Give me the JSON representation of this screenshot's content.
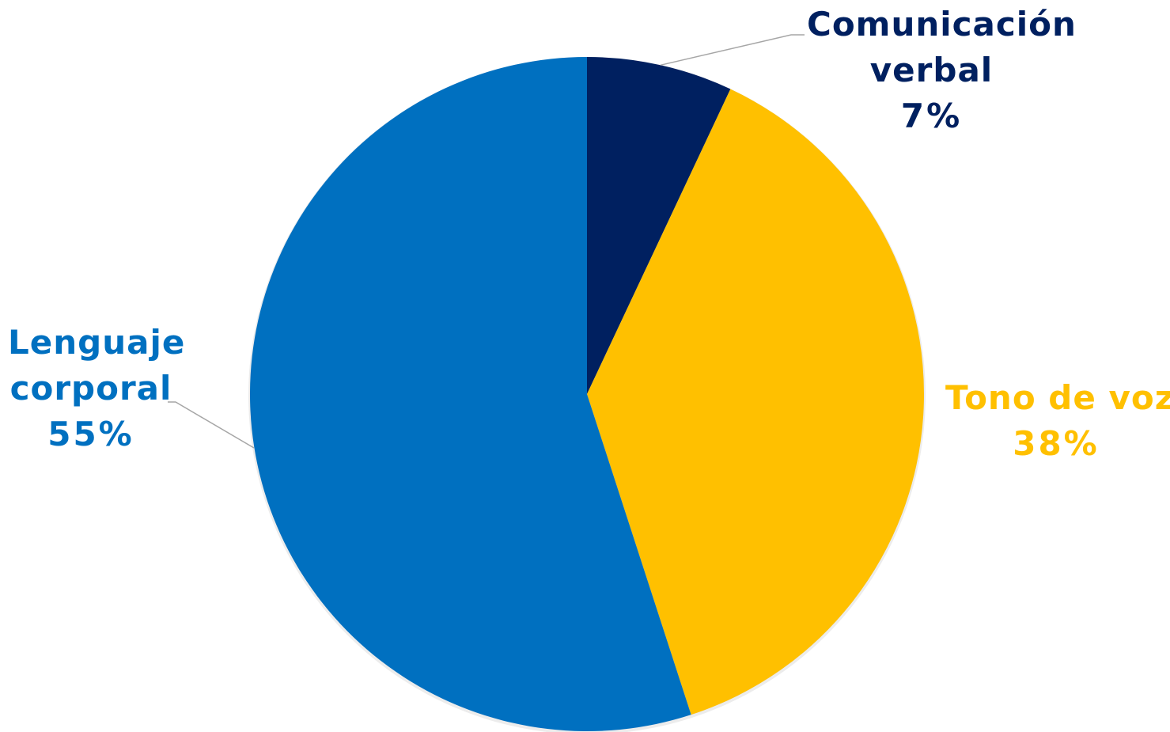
{
  "chart_data": {
    "type": "pie",
    "slices": [
      {
        "label_lines": [
          "Comunicación",
          "verbal"
        ],
        "percent_label": "7%",
        "value": 7,
        "color": "#002060"
      },
      {
        "label_lines": [
          "Tono de voz"
        ],
        "percent_label": "38%",
        "value": 38,
        "color": "#FFC000"
      },
      {
        "label_lines": [
          "Lenguaje",
          "corporal"
        ],
        "percent_label": "55%",
        "value": 55,
        "color": "#0070C0"
      }
    ],
    "start_angle": "12 o'clock",
    "direction": "clockwise",
    "legend": "none",
    "data_labels": "outside, with leader lines"
  }
}
